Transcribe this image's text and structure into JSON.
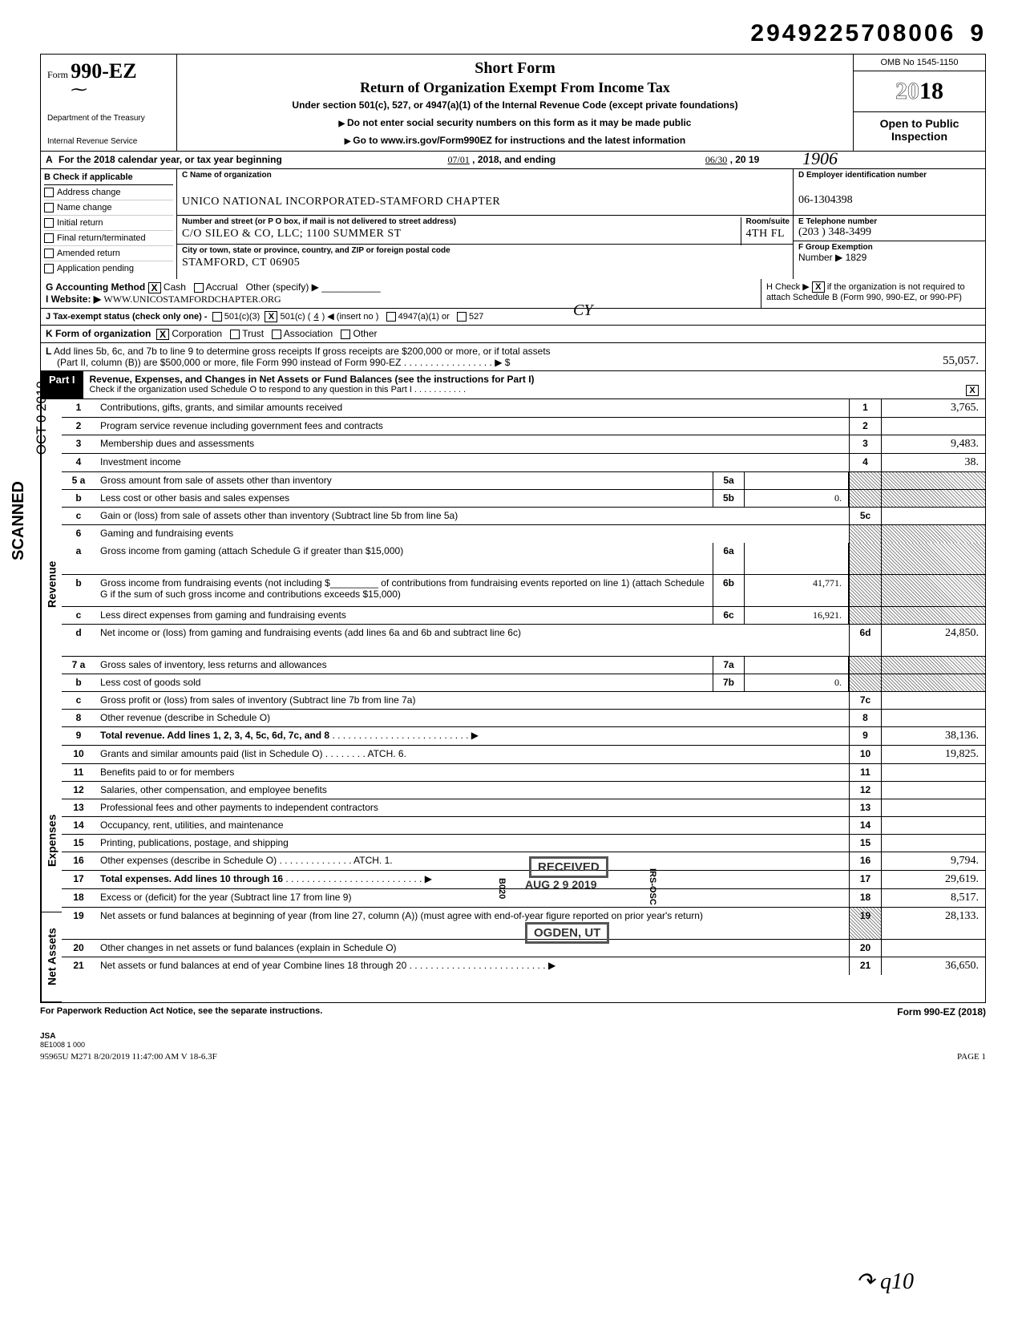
{
  "docNumber": "2949225708006",
  "docNumberTrail": "9",
  "header": {
    "formPrefix": "Form",
    "formNumber": "990-EZ",
    "dept1": "Department of the Treasury",
    "dept2": "Internal Revenue Service",
    "title1": "Short Form",
    "title2": "Return of Organization Exempt From Income Tax",
    "subtitle": "Under section 501(c), 527, or 4947(a)(1) of the Internal Revenue Code (except private foundations)",
    "arrowLine1": "Do not enter social security numbers on this form as it may be made public",
    "arrowLine2": "Go to www.irs.gov/Form990EZ for instructions and the latest information",
    "omb": "OMB No 1545-1150",
    "year": "2018",
    "yearPrefix": "20",
    "open": "Open to Public Inspection",
    "handNum": "1906"
  },
  "lineA": {
    "prefix": "A",
    "text": "For the 2018 calendar year, or tax year beginning",
    "startDate": "07/01",
    "midText": ", 2018, and ending",
    "endDate": "06/30",
    "endYear": ", 20 19"
  },
  "colB": {
    "heading": "B  Check if applicable",
    "items": [
      "Address change",
      "Name change",
      "Initial return",
      "Final return/terminated",
      "Amended return",
      "Application pending"
    ]
  },
  "colC": {
    "nameLabel": "C Name of organization",
    "orgName": "UNICO NATIONAL INCORPORATED-STAMFORD CHAPTER",
    "streetLabel": "Number and street (or P O  box, if mail is not delivered to street address)",
    "roomLabel": "Room/suite",
    "street": "C/O SILEO & CO, LLC; 1100 SUMMER ST",
    "room": "4TH FL",
    "cityLabel": "City or town, state or province, country, and ZIP or foreign postal code",
    "city": "STAMFORD, CT 06905",
    "handCY": "CY"
  },
  "colD": {
    "einLabel": "D  Employer identification number",
    "ein": "06-1304398",
    "telLabel": "E  Telephone number",
    "tel": "(203 ) 348-3499",
    "grpLabel": "F  Group Exemption",
    "grpNum": "Number  ▶ 1829"
  },
  "lineG": {
    "label": "G  Accounting Method",
    "cash": "Cash",
    "accrual": "Accrual",
    "other": "Other (specify) ▶"
  },
  "lineH": {
    "text": "H  Check ▶",
    "suffix": "if the organization is not required to attach Schedule B (Form 990, 990-EZ, or 990-PF)"
  },
  "lineI": {
    "label": "I   Website: ▶",
    "url": "WWW.UNICOSTAMFORDCHAPTER.ORG"
  },
  "lineJ": {
    "label": "J   Tax-exempt status (check only one) -",
    "opt1": "501(c)(3)",
    "opt2": "501(c) (",
    "opt2num": "4",
    "opt2suf": ") ◀ (insert no )",
    "opt3": "4947(a)(1) or",
    "opt4": "527"
  },
  "lineK": {
    "label": "K  Form of organization",
    "corp": "Corporation",
    "trust": "Trust",
    "assoc": "Association",
    "other": "Other"
  },
  "lineL": {
    "label": "L",
    "text1": "Add lines 5b, 6c, and 7b to line 9 to determine gross receipts  If gross receipts are $200,000 or more, or if total assets",
    "text2": "(Part II, column (B)) are $500,000 or more, file Form 990 instead of Form 990-EZ . . . . . . . . . . . . . . . . . ▶  $",
    "amount": "55,057."
  },
  "part1": {
    "tag": "Part I",
    "title": "Revenue, Expenses, and Changes in Net Assets or Fund Balances (see the instructions for Part I)",
    "subtitle": "Check if the organization used Schedule O to respond to any question in this Part I . . . . . . . . . . .",
    "schedOChecked": "X"
  },
  "sections": {
    "revenue": "Revenue",
    "expenses": "Expenses",
    "netassets": "Net Assets"
  },
  "rows": [
    {
      "n": "1",
      "d": "Contributions, gifts, grants, and similar amounts received",
      "rn": "1",
      "rv": "3,765."
    },
    {
      "n": "2",
      "d": "Program service revenue including government fees and contracts",
      "rn": "2",
      "rv": ""
    },
    {
      "n": "3",
      "d": "Membership dues and assessments",
      "rn": "3",
      "rv": "9,483."
    },
    {
      "n": "4",
      "d": "Investment income",
      "rn": "4",
      "rv": "38."
    },
    {
      "n": "5 a",
      "d": "Gross amount from sale of assets other than inventory",
      "mn": "5a",
      "mv": "",
      "shade": true
    },
    {
      "n": "b",
      "d": "Less  cost or other basis and sales expenses",
      "mn": "5b",
      "mv": "0.",
      "shade": true
    },
    {
      "n": "c",
      "d": "Gain or (loss) from sale of assets other than inventory (Subtract line 5b from line 5a)",
      "rn": "5c",
      "rv": ""
    },
    {
      "n": "6",
      "d": "Gaming and fundraising events",
      "shade": true,
      "nobd": true
    },
    {
      "n": "a",
      "d": "Gross income from gaming (attach Schedule G if greater than $15,000)",
      "mn": "6a",
      "mv": "",
      "shade": true,
      "tall": true
    },
    {
      "n": "b",
      "d": "Gross income from fundraising events (not including $_________ of contributions from fundraising events reported on line 1) (attach Schedule G if the sum of such gross income and contributions exceeds $15,000)",
      "mn": "6b",
      "mv": "41,771.",
      "shade": true,
      "tall": true
    },
    {
      "n": "c",
      "d": "Less  direct expenses from gaming and fundraising events",
      "mn": "6c",
      "mv": "16,921.",
      "shade": true
    },
    {
      "n": "d",
      "d": "Net income or (loss) from gaming and fundraising events (add lines 6a and 6b and subtract line 6c)",
      "rn": "6d",
      "rv": "24,850.",
      "tall": true
    },
    {
      "n": "7 a",
      "d": "Gross sales of inventory, less returns and allowances",
      "mn": "7a",
      "mv": "",
      "shade": true
    },
    {
      "n": "b",
      "d": "Less  cost of goods sold",
      "mn": "7b",
      "mv": "0.",
      "shade": true
    },
    {
      "n": "c",
      "d": "Gross profit or (loss) from sales of inventory (Subtract line 7b from line 7a)",
      "rn": "7c",
      "rv": ""
    },
    {
      "n": "8",
      "d": "Other revenue (describe in Schedule O)",
      "rn": "8",
      "rv": ""
    },
    {
      "n": "9",
      "d": "Total revenue. Add lines 1, 2, 3, 4, 5c, 6d, 7c, and 8",
      "rn": "9",
      "rv": "38,136.",
      "bold": true,
      "arrow": true
    },
    {
      "n": "10",
      "d": "Grants and similar amounts paid (list in Schedule O) . . . . . . . . ATCH. 6.",
      "rn": "10",
      "rv": "19,825."
    },
    {
      "n": "11",
      "d": "Benefits paid to or for members",
      "rn": "11",
      "rv": ""
    },
    {
      "n": "12",
      "d": "Salaries, other compensation, and employee benefits",
      "rn": "12",
      "rv": ""
    },
    {
      "n": "13",
      "d": "Professional fees and other payments to independent contractors",
      "rn": "13",
      "rv": ""
    },
    {
      "n": "14",
      "d": "Occupancy, rent, utilities, and maintenance",
      "rn": "14",
      "rv": ""
    },
    {
      "n": "15",
      "d": "Printing, publications, postage, and shipping",
      "rn": "15",
      "rv": ""
    },
    {
      "n": "16",
      "d": "Other expenses (describe in Schedule O) . . . . . . . . . . . . . . ATCH. 1.",
      "rn": "16",
      "rv": "9,794."
    },
    {
      "n": "17",
      "d": "Total expenses. Add lines 10 through 16",
      "rn": "17",
      "rv": "29,619.",
      "bold": true,
      "arrow": true
    },
    {
      "n": "18",
      "d": "Excess or (deficit) for the year (Subtract line 17 from line 9)",
      "rn": "18",
      "rv": "8,517."
    },
    {
      "n": "19",
      "d": "Net assets or fund balances at beginning of year (from line 27, column (A)) (must agree with end-of-year figure reported on prior year's return)",
      "rn": "19",
      "rv": "28,133.",
      "tall": true,
      "shadeNum": true
    },
    {
      "n": "20",
      "d": "Other changes in net assets or fund balances (explain in Schedule O)",
      "rn": "20",
      "rv": ""
    },
    {
      "n": "21",
      "d": "Net assets or fund balances at end of year Combine lines 18 through 20",
      "rn": "21",
      "rv": "36,650.",
      "arrow": true
    }
  ],
  "stamps": {
    "received": "RECEIVED",
    "aug": "AUG 2 9 2019",
    "ogden": "OGDEN, UT",
    "b020": "B020",
    "rsosc": "IRS-OSC"
  },
  "vertScanned": "SCANNED",
  "vertDate": "OCT 0  2019",
  "footer": {
    "left": "For Paperwork Reduction Act Notice, see the separate instructions.",
    "right": "Form 990-EZ (2018)"
  },
  "jsa": "JSA",
  "jsa2": "8E1008 1 000",
  "bottomLine": "95965U M271 8/20/2019  11:47:00 AM V 18-6.3F",
  "page": "PAGE 1",
  "sig": "q10"
}
